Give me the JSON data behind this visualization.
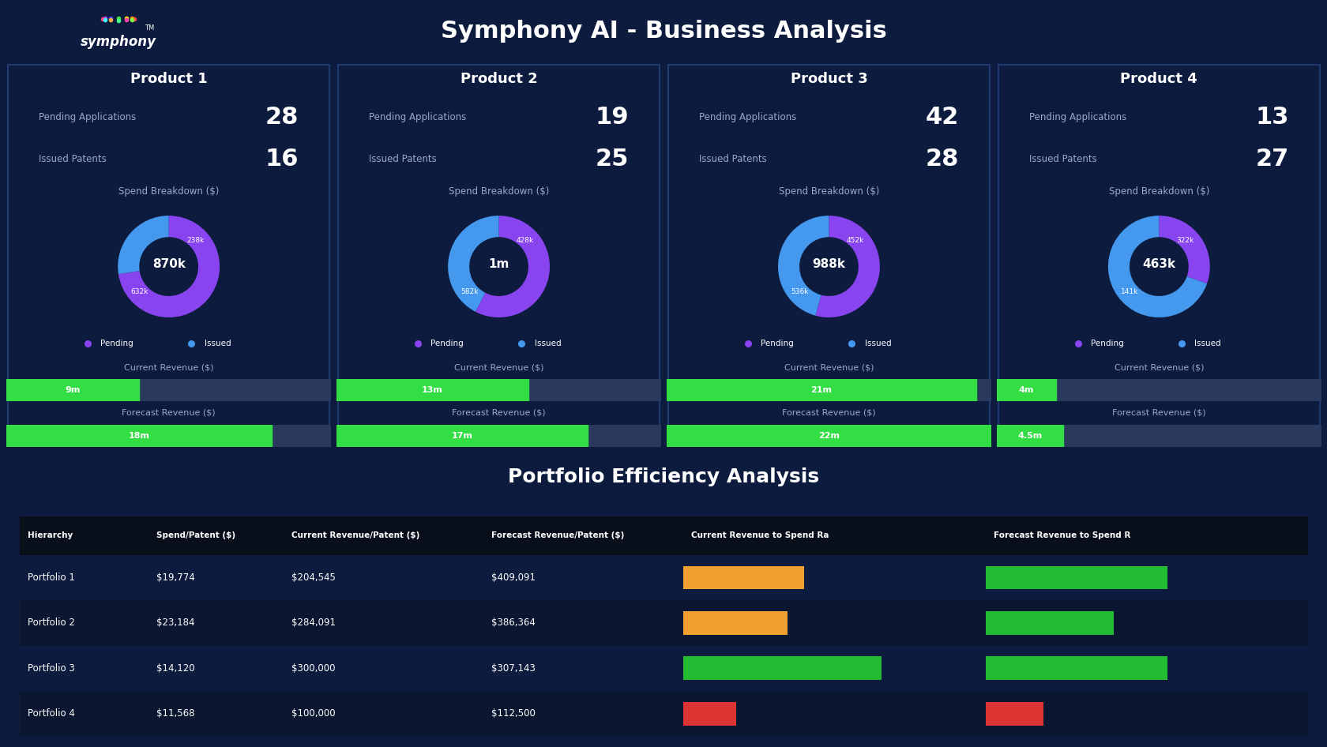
{
  "title": "Symphony AI - Business Analysis",
  "bg_color": "#0d1b3e",
  "header_bg": "#000000",
  "portfolio_title": "Portfolio Efficiency Analysis",
  "pending_color": "#8844ee",
  "issued_color": "#4499ee",
  "green_bar": "#33dd44",
  "bar_bg": "#2a3a5e",
  "products": [
    {
      "name": "Product 1",
      "pending": 28,
      "issued": 16,
      "donut_center": "870k",
      "donut_pending": 632,
      "donut_issued": 238,
      "donut_pending_label": "632k",
      "donut_issued_label": "238k",
      "current_revenue_label": "9m",
      "current_revenue_val": 9,
      "forecast_revenue_label": "18m",
      "forecast_revenue_val": 18
    },
    {
      "name": "Product 2",
      "pending": 19,
      "issued": 25,
      "donut_center": "1m",
      "donut_pending": 582,
      "donut_issued": 428,
      "donut_pending_label": "582k",
      "donut_issued_label": "428k",
      "current_revenue_label": "13m",
      "current_revenue_val": 13,
      "forecast_revenue_label": "17m",
      "forecast_revenue_val": 17
    },
    {
      "name": "Product 3",
      "pending": 42,
      "issued": 28,
      "donut_center": "988k",
      "donut_pending": 536,
      "donut_issued": 452,
      "donut_pending_label": "536k",
      "donut_issued_label": "452k",
      "current_revenue_label": "21m",
      "current_revenue_val": 21,
      "forecast_revenue_label": "22m",
      "forecast_revenue_val": 22
    },
    {
      "name": "Product 4",
      "pending": 13,
      "issued": 27,
      "donut_center": "463k",
      "donut_pending": 141,
      "donut_issued": 322,
      "donut_pending_label": "141k",
      "donut_issued_label": "322k",
      "current_revenue_label": "4m",
      "current_revenue_val": 4,
      "forecast_revenue_label": "4.5m",
      "forecast_revenue_val": 4.5
    }
  ],
  "revenue_max": 22,
  "table_headers": [
    "Hierarchy",
    "Spend/Patent ($)",
    "Current Revenue/Patent ($)",
    "Forecast Revenue/Patent ($)",
    "Current Revenue to Spend Ra",
    "Forecast Revenue to Spend R"
  ],
  "table_rows": [
    [
      "Portfolio 1",
      "$19,774",
      "$204,545",
      "$409,091"
    ],
    [
      "Portfolio 2",
      "$23,184",
      "$284,091",
      "$386,364"
    ],
    [
      "Portfolio 3",
      "$14,120",
      "$300,000",
      "$307,143"
    ],
    [
      "Portfolio 4",
      "$11,568",
      "$100,000",
      "$112,500"
    ]
  ],
  "bar_colors_current": [
    "#f0a030",
    "#f0a030",
    "#22bb33",
    "#dd3333"
  ],
  "bar_colors_forecast": [
    "#22bb33",
    "#22bb33",
    "#22bb33",
    "#dd3333"
  ],
  "bar_vals_current": [
    0.5,
    0.43,
    0.82,
    0.22
  ],
  "bar_vals_forecast": [
    0.88,
    0.62,
    0.88,
    0.28
  ],
  "logo_dot_colors": [
    "#ff4444",
    "#ff8800",
    "#ffdd00",
    "#44dd44",
    "#4444ff",
    "#aa44ff",
    "#ff4488",
    "#44ffff",
    "#ffaa44",
    "#44ff88",
    "#ff44aa",
    "#88ff44"
  ],
  "symphony_text": "symphony",
  "tm_text": "TM"
}
